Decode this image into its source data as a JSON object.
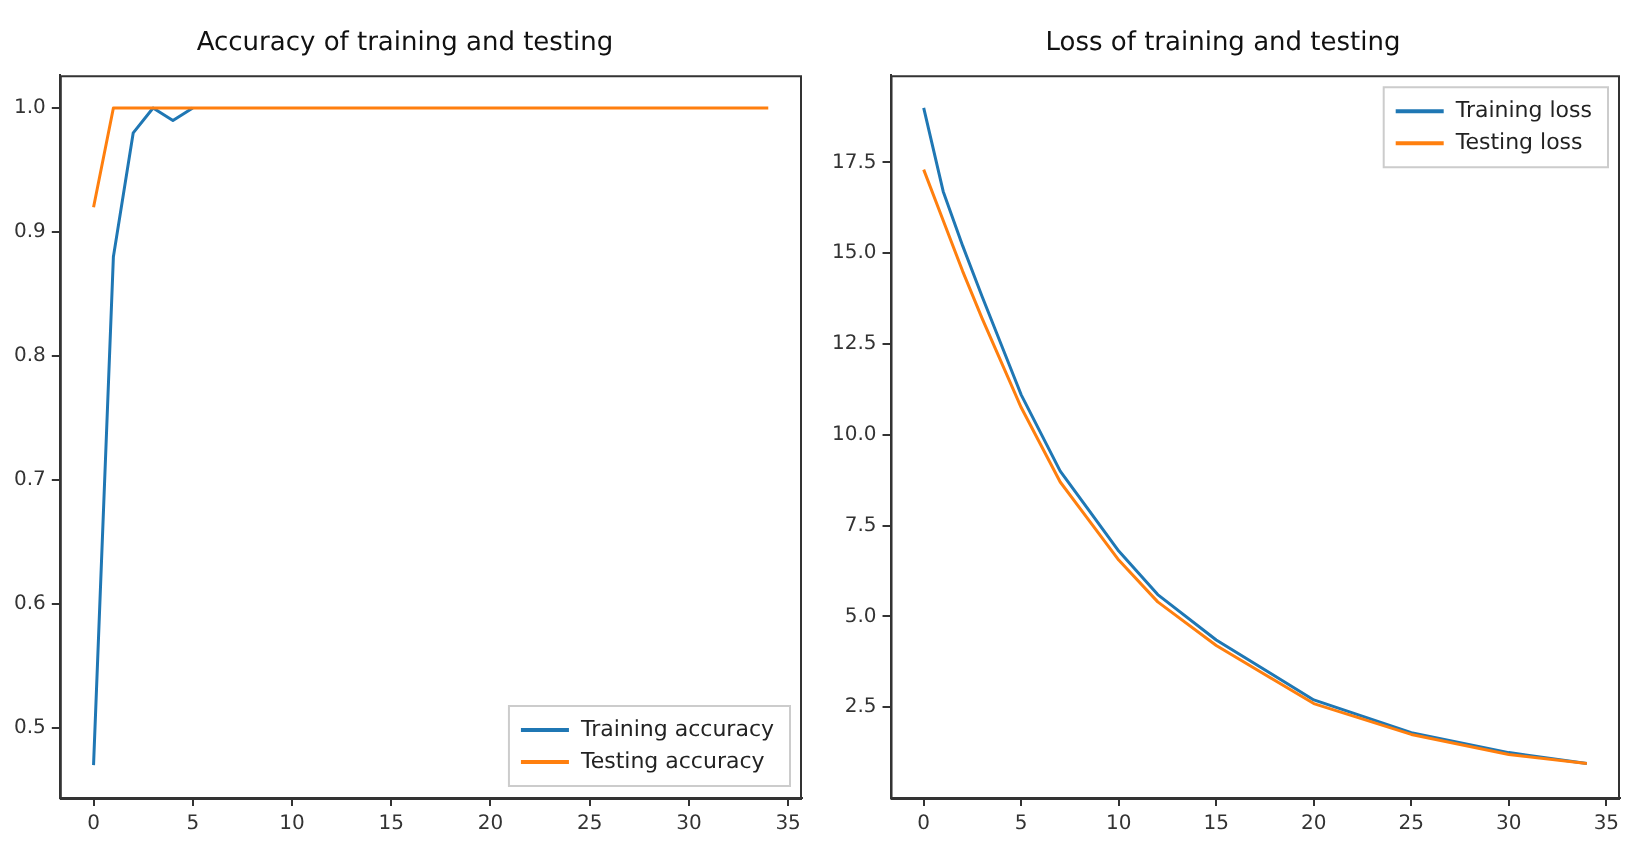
{
  "chart_data": [
    {
      "type": "line",
      "title": "Accuracy of training and testing",
      "x": [
        0,
        1,
        2,
        3,
        4,
        5,
        6,
        7,
        8,
        9,
        10,
        11,
        12,
        13,
        14,
        15,
        16,
        17,
        18,
        19,
        20,
        21,
        22,
        23,
        24,
        25,
        26,
        27,
        28,
        29,
        30,
        31,
        32,
        33,
        34
      ],
      "series": [
        {
          "name": "Training accuracy",
          "color": "#1f77b4",
          "values": [
            0.47,
            0.88,
            0.98,
            1.0,
            0.99,
            1.0,
            null,
            null,
            null,
            null,
            null,
            null,
            null,
            null,
            null,
            null,
            null,
            null,
            null,
            null,
            null,
            null,
            null,
            null,
            null,
            null,
            null,
            null,
            null,
            null,
            null,
            null,
            null,
            null,
            null
          ]
        },
        {
          "name": "Testing accuracy",
          "color": "#ff7f0e",
          "values": [
            0.92,
            1.0,
            1.0,
            1.0,
            1.0,
            1.0,
            1.0,
            1.0,
            1.0,
            1.0,
            1.0,
            1.0,
            1.0,
            1.0,
            1.0,
            1.0,
            1.0,
            1.0,
            1.0,
            1.0,
            1.0,
            1.0,
            1.0,
            1.0,
            1.0,
            1.0,
            1.0,
            1.0,
            1.0,
            1.0,
            1.0,
            1.0,
            1.0,
            1.0,
            1.0
          ]
        }
      ],
      "xlim": [
        -1.7,
        35.7
      ],
      "xticks": [
        0,
        5,
        10,
        15,
        20,
        25,
        30,
        35
      ],
      "ylim": [
        0.4435,
        1.0265
      ],
      "yticks": [
        {
          "value": 0.5,
          "label": "0.5"
        },
        {
          "value": 0.6,
          "label": "0.6"
        },
        {
          "value": 0.7,
          "label": "0.7"
        },
        {
          "value": 0.8,
          "label": "0.8"
        },
        {
          "value": 0.9,
          "label": "0.9"
        },
        {
          "value": 1.0,
          "label": "1.0"
        }
      ],
      "grid": false,
      "legend": "bottom right",
      "marker": "none",
      "line_style": "solid"
    },
    {
      "type": "line",
      "title": "Loss of training and testing",
      "series": [
        {
          "name": "Training loss",
          "color": "#1f77b4",
          "x": [
            0,
            1,
            2,
            3,
            5,
            7,
            10,
            12,
            15,
            20,
            25,
            30,
            34
          ],
          "values": [
            19.0,
            16.7,
            15.2,
            13.8,
            11.1,
            9.0,
            6.8,
            5.6,
            4.35,
            2.7,
            1.8,
            1.25,
            0.95
          ]
        },
        {
          "name": "Testing loss",
          "color": "#ff7f0e",
          "x": [
            0,
            1,
            2,
            3,
            5,
            7,
            10,
            12,
            15,
            20,
            25,
            30,
            34
          ],
          "values": [
            17.3,
            15.9,
            14.5,
            13.2,
            10.75,
            8.7,
            6.55,
            5.4,
            4.2,
            2.6,
            1.75,
            1.2,
            0.95
          ]
        }
      ],
      "xlim": [
        -1.7,
        35.7
      ],
      "xticks": [
        0,
        5,
        10,
        15,
        20,
        25,
        30,
        35
      ],
      "ylim": [
        0,
        19.9
      ],
      "yticks": [
        2.5,
        {
          "value": 5,
          "label": "5.0"
        },
        7.5,
        {
          "value": 10,
          "label": "10.0"
        },
        12.5,
        {
          "value": 15,
          "label": "15.0"
        },
        17.5
      ],
      "grid": false,
      "legend": "top right",
      "marker": "none",
      "line_style": "solid"
    }
  ]
}
